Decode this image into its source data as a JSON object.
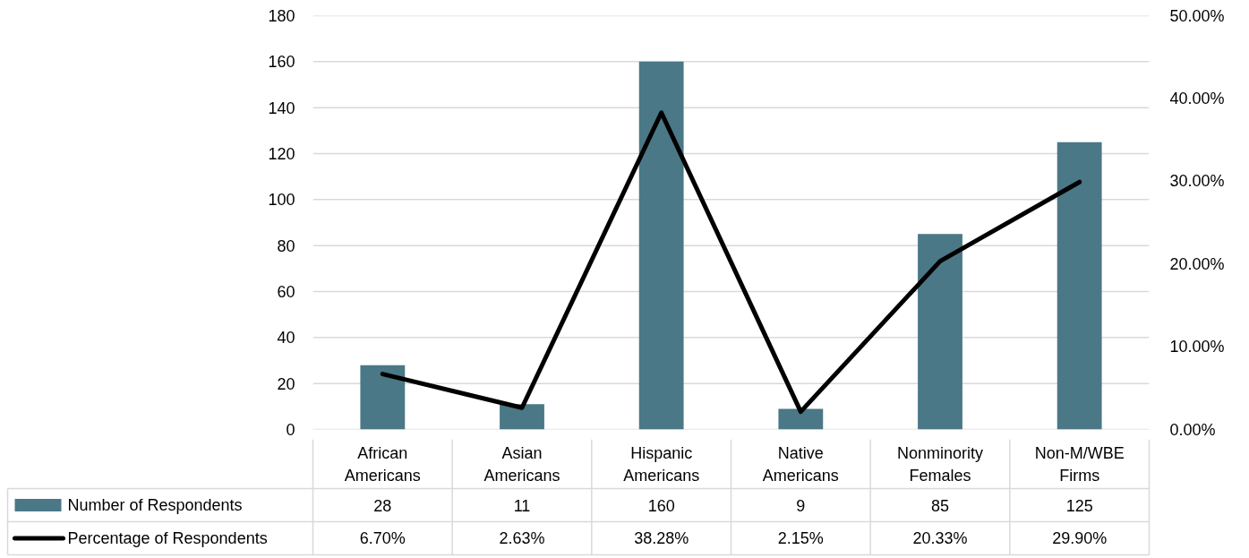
{
  "chart_data": {
    "type": "bar",
    "categories": [
      "African Americans",
      "Asian Americans",
      "Hispanic Americans",
      "Native Americans",
      "Nonminority Females",
      "Non-M/WBE Firms"
    ],
    "series": [
      {
        "name": "Number of Respondents",
        "color": "#4a7886",
        "values": [
          28,
          11,
          160,
          9,
          85,
          125
        ],
        "value_labels": [
          "28",
          "11",
          "160",
          "9",
          "85",
          "125"
        ]
      },
      {
        "name": "Percentage of Respondents",
        "type": "line",
        "axis": "y2",
        "color": "#000000",
        "values": [
          6.7,
          2.63,
          38.28,
          2.15,
          20.33,
          29.9
        ],
        "value_labels": [
          "6.70%",
          "2.63%",
          "38.28%",
          "2.15%",
          "20.33%",
          "29.90%"
        ]
      }
    ],
    "ylim": [
      0,
      180
    ],
    "yticks": [
      0,
      20,
      40,
      60,
      80,
      100,
      120,
      140,
      160,
      180
    ],
    "y2lim": [
      0,
      50
    ],
    "y2ticks": [
      {
        "value": 0,
        "label": "0.00%"
      },
      {
        "value": 10,
        "label": "10.00%"
      },
      {
        "value": 20,
        "label": "20.00%"
      },
      {
        "value": 30,
        "label": "30.00%"
      },
      {
        "value": 40,
        "label": "40.00%"
      },
      {
        "value": 50,
        "label": "50.00%"
      }
    ],
    "grid": "y",
    "legend": "bottom"
  }
}
